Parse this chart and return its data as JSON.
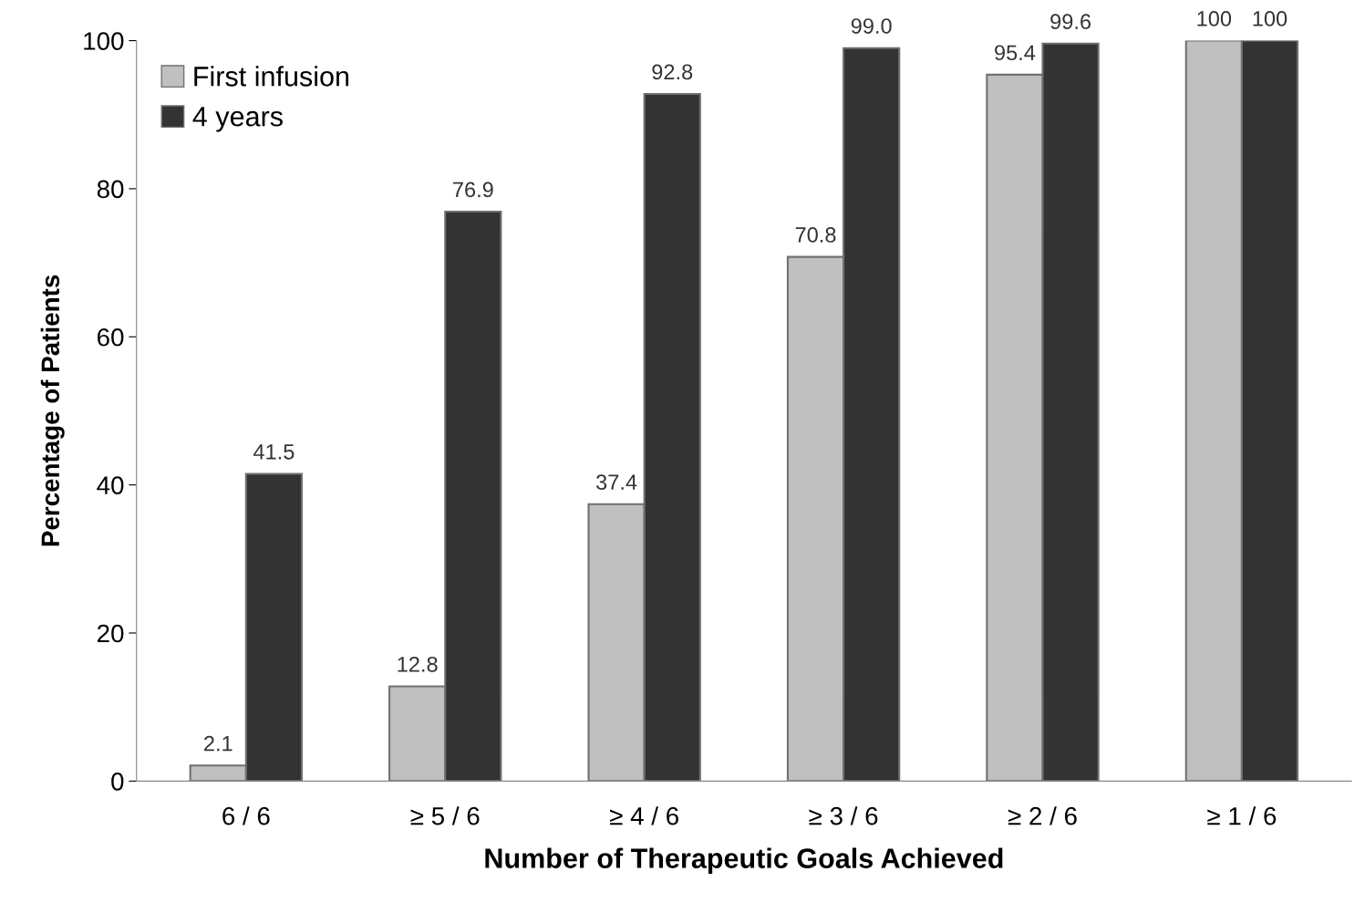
{
  "chart_data": {
    "type": "bar",
    "xlabel": "Number of Therapeutic Goals Achieved",
    "ylabel": "Percentage of Patients",
    "categories": [
      "6 / 6",
      "≥ 5 / 6",
      "≥ 4 / 6",
      "≥ 3 / 6",
      "≥ 2 / 6",
      "≥ 1 / 6"
    ],
    "series": [
      {
        "name": "First infusion",
        "color": "#c0c0c0",
        "values": [
          2.1,
          12.8,
          37.4,
          70.8,
          95.4,
          100
        ],
        "value_labels": [
          "2.1",
          "12.8",
          "37.4",
          "70.8",
          "95.4",
          "100"
        ]
      },
      {
        "name": "4 years",
        "color": "#333333",
        "values": [
          41.5,
          76.9,
          92.8,
          99.0,
          99.6,
          100
        ],
        "value_labels": [
          "41.5",
          "76.9",
          "92.8",
          "99.0",
          "99.6",
          "100"
        ]
      }
    ],
    "ylim": [
      0,
      100
    ],
    "yticks": [
      0,
      20,
      40,
      60,
      80,
      100
    ],
    "legend": "top left",
    "grid": false
  }
}
